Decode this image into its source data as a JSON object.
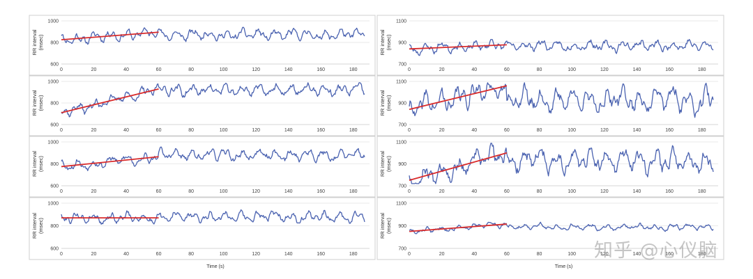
{
  "chart_data": [
    {
      "type": "line",
      "ylabel": "RR interval",
      "ylabel_unit": "(msec)",
      "xlabel": "",
      "xlim": [
        0,
        190
      ],
      "ylim": [
        600,
        1000
      ],
      "yticks": [
        600,
        800,
        1000
      ],
      "xticks": [
        0,
        20,
        40,
        60,
        80,
        100,
        120,
        140,
        160,
        180
      ],
      "series_mean": 870,
      "amplitude": 55,
      "seed": 11,
      "trend": {
        "x": [
          0,
          60
        ],
        "y": [
          825,
          895
        ]
      }
    },
    {
      "type": "line",
      "ylabel": "RR interval",
      "ylabel_unit": "(msec)",
      "xlabel": "",
      "xlim": [
        0,
        190
      ],
      "ylim": [
        700,
        1100
      ],
      "yticks": [
        700,
        900,
        1100
      ],
      "xticks": [
        0,
        20,
        40,
        60,
        80,
        100,
        120,
        140,
        160,
        180
      ],
      "series_mean": 870,
      "amplitude": 55,
      "seed": 23,
      "trend": {
        "x": [
          0,
          60
        ],
        "y": [
          840,
          878
        ]
      }
    },
    {
      "type": "line",
      "ylabel": "RR interval",
      "ylabel_unit": "(msec)",
      "xlabel": "",
      "xlim": [
        0,
        190
      ],
      "ylim": [
        600,
        1000
      ],
      "yticks": [
        600,
        800,
        1000
      ],
      "xticks": [
        0,
        20,
        40,
        60,
        80,
        100,
        120,
        140,
        160,
        180
      ],
      "series_mean": 920,
      "amplitude": 60,
      "seed": 37,
      "trend": {
        "x": [
          0,
          60
        ],
        "y": [
          710,
          930
        ]
      }
    },
    {
      "type": "line",
      "ylabel": "RR interval",
      "ylabel_unit": "(msec)",
      "xlabel": "",
      "xlim": [
        0,
        190
      ],
      "ylim": [
        700,
        1100
      ],
      "yticks": [
        700,
        900,
        1100
      ],
      "xticks": [
        0,
        20,
        40,
        60,
        80,
        100,
        120,
        140,
        160,
        180
      ],
      "series_mean": 930,
      "amplitude": 120,
      "seed": 41,
      "trend": {
        "x": [
          0,
          60
        ],
        "y": [
          840,
          1060
        ]
      }
    },
    {
      "type": "line",
      "ylabel": "RR interval",
      "ylabel_unit": "(msec)",
      "xlabel": "",
      "xlim": [
        0,
        190
      ],
      "ylim": [
        600,
        1000
      ],
      "yticks": [
        600,
        800,
        1000
      ],
      "xticks": [
        0,
        20,
        40,
        60,
        80,
        100,
        120,
        140,
        160,
        180
      ],
      "series_mean": 880,
      "amplitude": 55,
      "seed": 53,
      "trend": {
        "x": [
          0,
          60
        ],
        "y": [
          775,
          865
        ]
      }
    },
    {
      "type": "line",
      "ylabel": "RR interval",
      "ylabel_unit": "(msec)",
      "xlabel": "",
      "xlim": [
        0,
        190
      ],
      "ylim": [
        700,
        1100
      ],
      "yticks": [
        700,
        900,
        1100
      ],
      "xticks": [
        0,
        20,
        40,
        60,
        80,
        100,
        120,
        140,
        160,
        180
      ],
      "series_mean": 930,
      "amplitude": 110,
      "seed": 67,
      "trend": {
        "x": [
          0,
          60
        ],
        "y": [
          750,
          1000
        ]
      }
    },
    {
      "type": "line",
      "ylabel": "RR interval",
      "ylabel_unit": "(msec)",
      "xlabel": "Time (s)",
      "xlim": [
        0,
        190
      ],
      "ylim": [
        600,
        1000
      ],
      "yticks": [
        600,
        800,
        1000
      ],
      "xticks": [
        0,
        20,
        40,
        60,
        80,
        100,
        120,
        140,
        160,
        180
      ],
      "series_mean": 880,
      "amplitude": 50,
      "seed": 79,
      "trend": {
        "x": [
          0,
          60
        ],
        "y": [
          870,
          870
        ]
      }
    },
    {
      "type": "line",
      "ylabel": "RR interval",
      "ylabel_unit": "(msec)",
      "xlabel": "Time (s)",
      "xlim": [
        0,
        190
      ],
      "ylim": [
        700,
        1100
      ],
      "yticks": [
        700,
        900,
        1100
      ],
      "xticks": [
        0,
        20,
        40,
        60,
        80,
        100,
        120,
        140,
        160,
        180
      ],
      "series_mean": 890,
      "amplitude": 30,
      "seed": 83,
      "trend": {
        "x": [
          0,
          60
        ],
        "y": [
          850,
          915
        ]
      }
    }
  ],
  "watermark": "知乎 @心仪脑",
  "colors": {
    "series": "#4a62b0",
    "trend": "#d92b2b"
  }
}
